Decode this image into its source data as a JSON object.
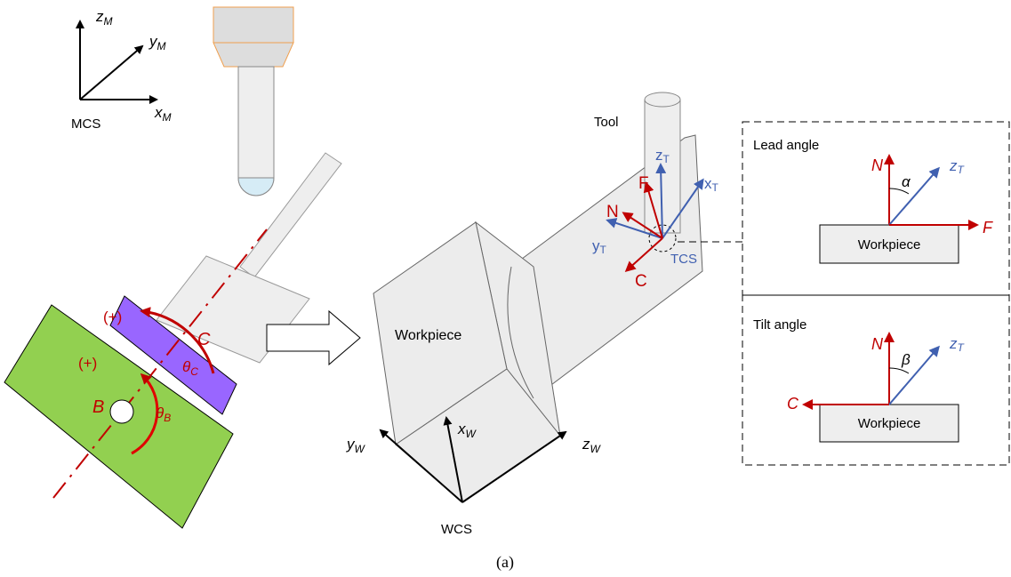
{
  "machine": {
    "axes": [
      {
        "symbol": "z",
        "sub": "M"
      },
      {
        "symbol": "y",
        "sub": "M"
      },
      {
        "symbol": "x",
        "sub": "M"
      }
    ],
    "frame_label": "MCS",
    "c_axis": {
      "direction": "(+)",
      "label": "C",
      "angle": {
        "symbol": "θ",
        "sub": "C"
      }
    },
    "b_axis": {
      "direction": "(+)",
      "label": "B",
      "angle": {
        "symbol": "θ",
        "sub": "B"
      }
    }
  },
  "workpiece": {
    "label": "Workpiece",
    "axes": [
      {
        "symbol": "y",
        "sub": "W"
      },
      {
        "symbol": "x",
        "sub": "W"
      },
      {
        "symbol": "z",
        "sub": "W"
      }
    ],
    "frame_label": "WCS"
  },
  "tool": {
    "label": "Tool",
    "axes": [
      {
        "symbol": "z",
        "sub": "T"
      },
      {
        "symbol": "x",
        "sub": "T"
      },
      {
        "symbol": "y",
        "sub": "T"
      }
    ],
    "frame_label": "TCS",
    "vectors": [
      "F",
      "N",
      "C"
    ]
  },
  "lead_angle": {
    "title": "Lead angle",
    "normal": "N",
    "angle": "α",
    "tool_axis": {
      "symbol": "z",
      "sub": "T"
    },
    "block": "Workpiece",
    "direction": "F"
  },
  "tilt_angle": {
    "title": "Tilt angle",
    "normal": "N",
    "angle": "β",
    "tool_axis": {
      "symbol": "z",
      "sub": "T"
    },
    "block": "Workpiece",
    "direction": "C"
  },
  "caption": "(a)"
}
